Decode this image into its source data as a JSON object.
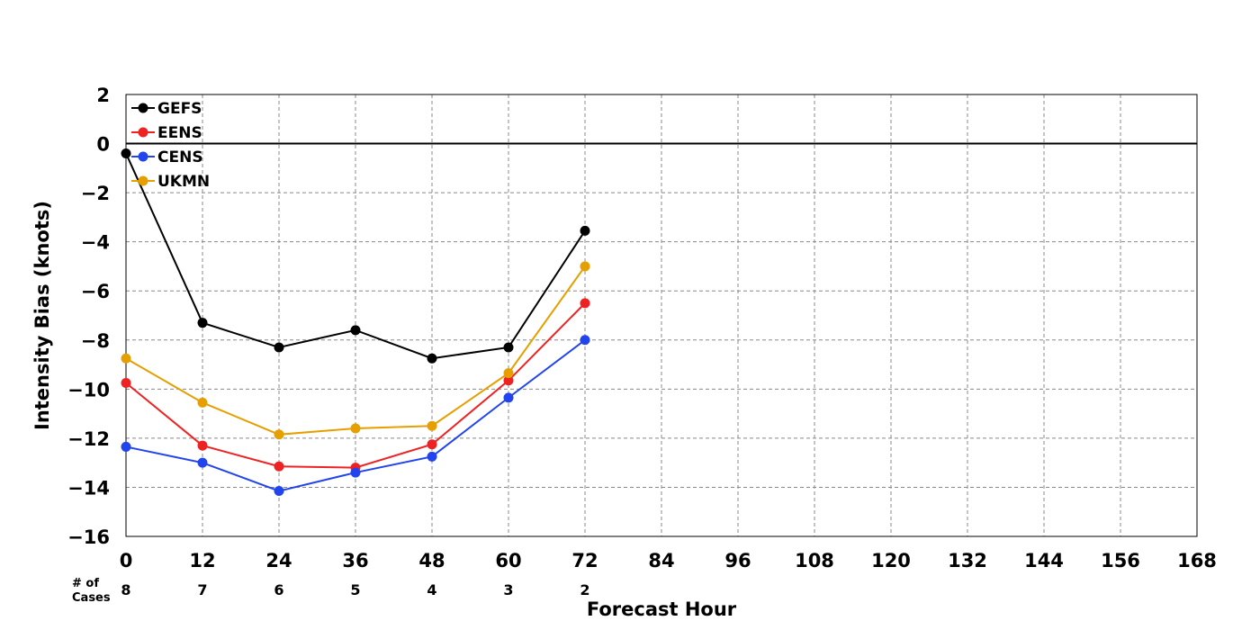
{
  "chart_data": {
    "type": "line",
    "xlabel": "Forecast Hour",
    "ylabel": "Intensity Bias (knots)",
    "xlim": [
      0,
      168
    ],
    "ylim": [
      -16,
      2
    ],
    "xticks": [
      0,
      12,
      24,
      36,
      48,
      60,
      72,
      84,
      96,
      108,
      120,
      132,
      144,
      156,
      168
    ],
    "yticks": [
      -16,
      -14,
      -12,
      -10,
      -8,
      -6,
      -4,
      -2,
      0,
      2
    ],
    "ytick_labels": [
      "−16",
      "−14",
      "−12",
      "−10",
      "−8",
      "−6",
      "−4",
      "−2",
      "0",
      "2"
    ],
    "grid": true,
    "legend_position": "top-left",
    "x": [
      0,
      12,
      24,
      36,
      48,
      60,
      72
    ],
    "series": [
      {
        "name": "GEFS",
        "color": "#000000",
        "values": [
          -0.4,
          -7.3,
          -8.3,
          -7.6,
          -8.75,
          -8.3,
          -3.55
        ]
      },
      {
        "name": "EENS",
        "color": "#ee2222",
        "values": [
          -9.75,
          -12.3,
          -13.15,
          -13.2,
          -12.25,
          -9.65,
          -6.5
        ]
      },
      {
        "name": "CENS",
        "color": "#2244ee",
        "values": [
          -12.35,
          -13.0,
          -14.15,
          -13.4,
          -12.75,
          -10.35,
          -8.0
        ]
      },
      {
        "name": "UKMN",
        "color": "#e69f00",
        "values": [
          -8.75,
          -10.55,
          -11.85,
          -11.6,
          -11.5,
          -9.35,
          -5.0
        ]
      }
    ],
    "cases_label": "# of\nCases",
    "cases_label_lines": [
      "# of",
      "Cases"
    ],
    "cases": [
      "8",
      "7",
      "6",
      "5",
      "4",
      "3",
      "2"
    ]
  }
}
